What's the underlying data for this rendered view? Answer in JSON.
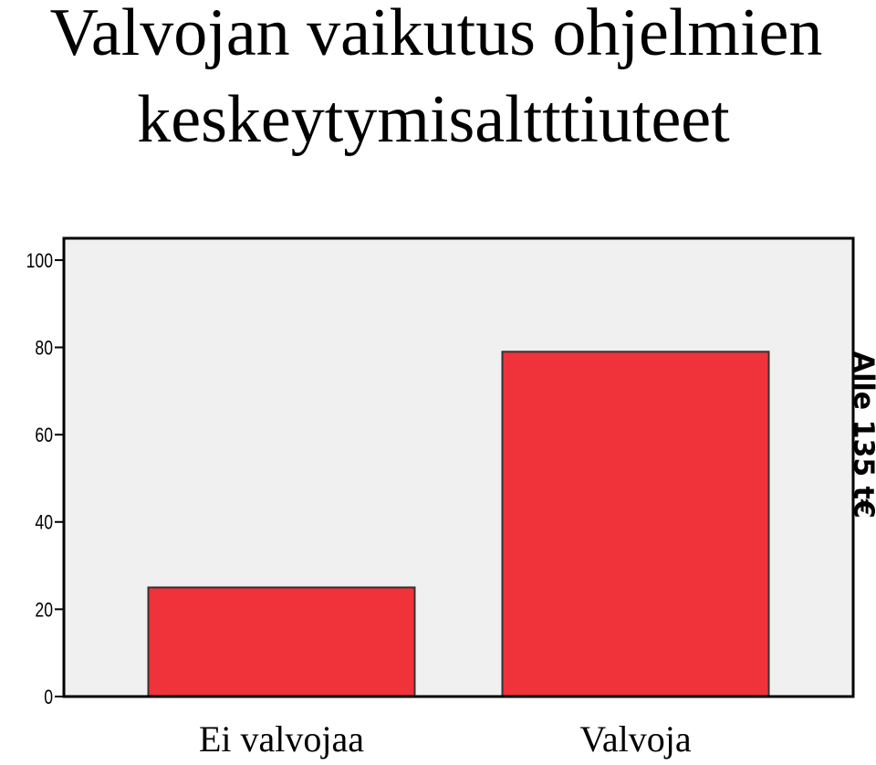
{
  "chart_data": {
    "type": "bar",
    "title": [
      "Valvojan vaikutus ohjelmien",
      "keskeytymisaltttiuteet"
    ],
    "categories": [
      "Ei valvojaa",
      "Valvoja"
    ],
    "values": [
      25,
      79
    ],
    "color": "#f0323a",
    "ylim": [
      0,
      105
    ],
    "yticks": [
      0,
      20,
      40,
      60,
      80,
      100
    ],
    "panel_label": "Alle 135 t€"
  }
}
